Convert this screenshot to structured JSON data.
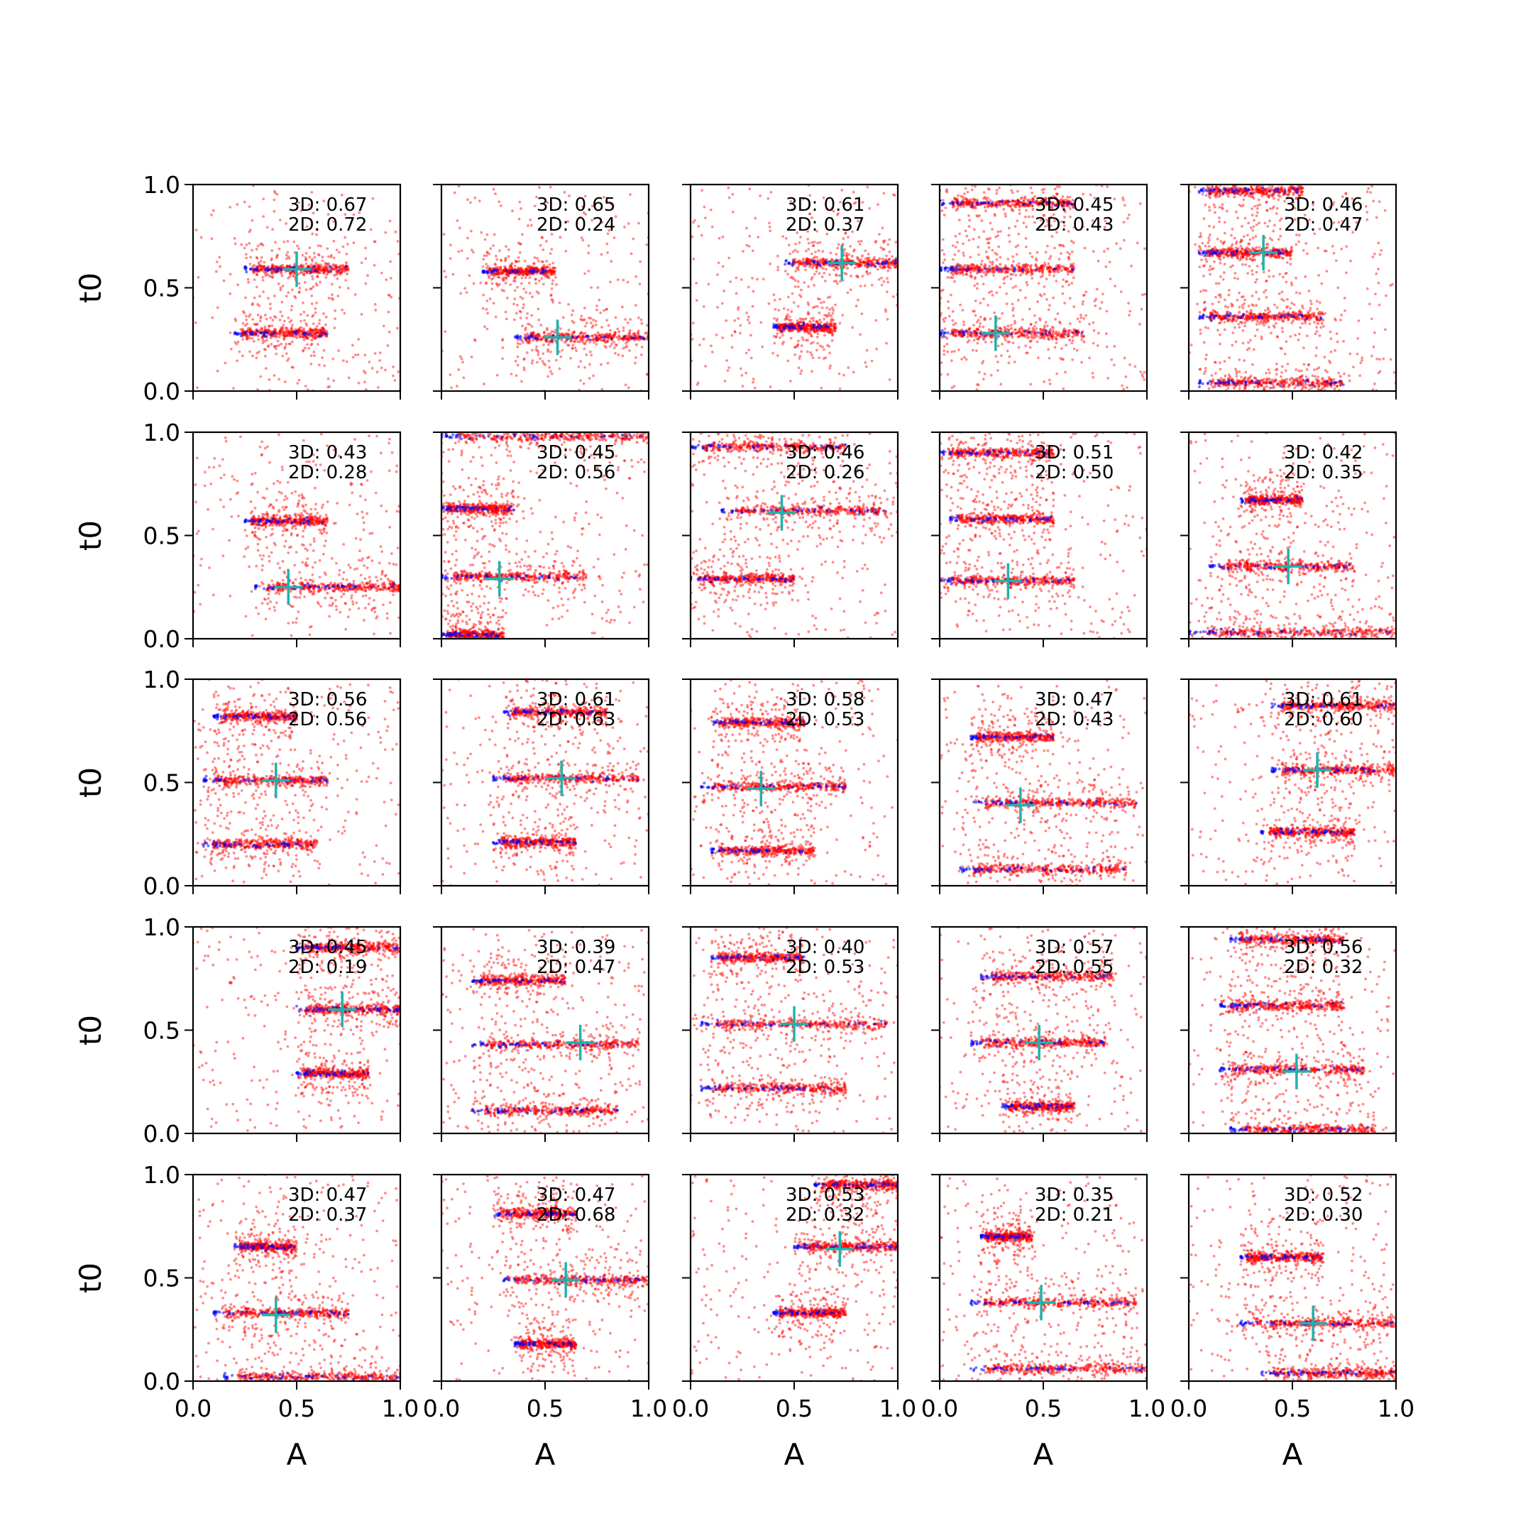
{
  "figure": {
    "xlabel": "A",
    "ylabel": "t0",
    "xlim": [
      0,
      1
    ],
    "ylim": [
      0,
      1
    ],
    "xticks": [
      "0.0",
      "0.5",
      "1.0"
    ],
    "yticks": [
      "0.0",
      "0.5",
      "1.0"
    ],
    "rows": 5,
    "cols": 5,
    "colors": {
      "red_points": "#ff0000",
      "blue_points": "#0000ff",
      "marker": "#20b2aa"
    },
    "grid": false
  },
  "chart_data": [
    {
      "type": "scatter",
      "annotation_3d": "3D: 0.67",
      "annotation_2d": "2D: 0.72",
      "marker": [
        0.5,
        0.59
      ],
      "clusters": [
        {
          "a": [
            0.25,
            0.75
          ],
          "t": 0.59
        },
        {
          "a": [
            0.2,
            0.65
          ],
          "t": 0.28
        }
      ]
    },
    {
      "type": "scatter",
      "annotation_3d": "3D: 0.65",
      "annotation_2d": "2D: 0.24",
      "marker": [
        0.56,
        0.26
      ],
      "clusters": [
        {
          "a": [
            0.2,
            0.55
          ],
          "t": 0.58
        },
        {
          "a": [
            0.35,
            1.0
          ],
          "t": 0.26
        }
      ]
    },
    {
      "type": "scatter",
      "annotation_3d": "3D: 0.61",
      "annotation_2d": "2D: 0.37",
      "marker": [
        0.73,
        0.62
      ],
      "clusters": [
        {
          "a": [
            0.45,
            1.0
          ],
          "t": 0.62
        },
        {
          "a": [
            0.4,
            0.7
          ],
          "t": 0.31
        }
      ]
    },
    {
      "type": "scatter",
      "annotation_3d": "3D: 0.45",
      "annotation_2d": "2D: 0.43",
      "marker": [
        0.27,
        0.28
      ],
      "clusters": [
        {
          "a": [
            0.0,
            0.65
          ],
          "t": 0.91
        },
        {
          "a": [
            0.0,
            0.65
          ],
          "t": 0.59
        },
        {
          "a": [
            0.0,
            0.7
          ],
          "t": 0.28
        }
      ]
    },
    {
      "type": "scatter",
      "annotation_3d": "3D: 0.46",
      "annotation_2d": "2D: 0.47",
      "marker": [
        0.36,
        0.67
      ],
      "clusters": [
        {
          "a": [
            0.05,
            0.55
          ],
          "t": 0.97
        },
        {
          "a": [
            0.05,
            0.5
          ],
          "t": 0.67
        },
        {
          "a": [
            0.05,
            0.65
          ],
          "t": 0.36
        },
        {
          "a": [
            0.05,
            0.75
          ],
          "t": 0.04
        }
      ]
    },
    {
      "type": "scatter",
      "annotation_3d": "3D: 0.43",
      "annotation_2d": "2D: 0.28",
      "marker": [
        0.46,
        0.25
      ],
      "clusters": [
        {
          "a": [
            0.25,
            0.65
          ],
          "t": 0.57
        },
        {
          "a": [
            0.3,
            1.0
          ],
          "t": 0.25
        }
      ]
    },
    {
      "type": "scatter",
      "annotation_3d": "3D: 0.45",
      "annotation_2d": "2D: 0.56",
      "marker": [
        0.28,
        0.29
      ],
      "clusters": [
        {
          "a": [
            0.0,
            1.0
          ],
          "t": 0.98
        },
        {
          "a": [
            0.0,
            0.35
          ],
          "t": 0.63
        },
        {
          "a": [
            0.0,
            0.7
          ],
          "t": 0.3
        },
        {
          "a": [
            0.0,
            0.3
          ],
          "t": 0.02
        }
      ]
    },
    {
      "type": "scatter",
      "annotation_3d": "3D: 0.46",
      "annotation_2d": "2D: 0.26",
      "marker": [
        0.44,
        0.61
      ],
      "clusters": [
        {
          "a": [
            0.0,
            0.75
          ],
          "t": 0.93
        },
        {
          "a": [
            0.15,
            0.95
          ],
          "t": 0.62
        },
        {
          "a": [
            0.0,
            0.5
          ],
          "t": 0.29
        }
      ]
    },
    {
      "type": "scatter",
      "annotation_3d": "3D: 0.51",
      "annotation_2d": "2D: 0.50",
      "marker": [
        0.33,
        0.28
      ],
      "clusters": [
        {
          "a": [
            0.0,
            0.55
          ],
          "t": 0.9
        },
        {
          "a": [
            0.05,
            0.55
          ],
          "t": 0.58
        },
        {
          "a": [
            0.0,
            0.65
          ],
          "t": 0.28
        }
      ]
    },
    {
      "type": "scatter",
      "annotation_3d": "3D: 0.42",
      "annotation_2d": "2D: 0.35",
      "marker": [
        0.48,
        0.35
      ],
      "clusters": [
        {
          "a": [
            0.25,
            0.55
          ],
          "t": 0.67
        },
        {
          "a": [
            0.1,
            0.8
          ],
          "t": 0.35
        },
        {
          "a": [
            0.0,
            1.0
          ],
          "t": 0.03
        }
      ]
    },
    {
      "type": "scatter",
      "annotation_3d": "3D: 0.56",
      "annotation_2d": "2D: 0.56",
      "marker": [
        0.4,
        0.51
      ],
      "clusters": [
        {
          "a": [
            0.1,
            0.5
          ],
          "t": 0.82
        },
        {
          "a": [
            0.05,
            0.65
          ],
          "t": 0.51
        },
        {
          "a": [
            0.05,
            0.6
          ],
          "t": 0.2
        }
      ]
    },
    {
      "type": "scatter",
      "annotation_3d": "3D: 0.61",
      "annotation_2d": "2D: 0.63",
      "marker": [
        0.58,
        0.52
      ],
      "clusters": [
        {
          "a": [
            0.3,
            0.8
          ],
          "t": 0.84
        },
        {
          "a": [
            0.25,
            0.95
          ],
          "t": 0.52
        },
        {
          "a": [
            0.25,
            0.65
          ],
          "t": 0.21
        }
      ]
    },
    {
      "type": "scatter",
      "annotation_3d": "3D: 0.58",
      "annotation_2d": "2D: 0.53",
      "marker": [
        0.34,
        0.47
      ],
      "clusters": [
        {
          "a": [
            0.1,
            0.55
          ],
          "t": 0.79
        },
        {
          "a": [
            0.05,
            0.75
          ],
          "t": 0.48
        },
        {
          "a": [
            0.1,
            0.6
          ],
          "t": 0.17
        }
      ]
    },
    {
      "type": "scatter",
      "annotation_3d": "3D: 0.47",
      "annotation_2d": "2D: 0.43",
      "marker": [
        0.39,
        0.39
      ],
      "clusters": [
        {
          "a": [
            0.15,
            0.55
          ],
          "t": 0.72
        },
        {
          "a": [
            0.15,
            0.95
          ],
          "t": 0.4
        },
        {
          "a": [
            0.1,
            0.9
          ],
          "t": 0.08
        }
      ]
    },
    {
      "type": "scatter",
      "annotation_3d": "3D: 0.61",
      "annotation_2d": "2D: 0.60",
      "marker": [
        0.62,
        0.56
      ],
      "clusters": [
        {
          "a": [
            0.4,
            1.0
          ],
          "t": 0.87
        },
        {
          "a": [
            0.4,
            1.0
          ],
          "t": 0.56
        },
        {
          "a": [
            0.35,
            0.8
          ],
          "t": 0.26
        }
      ]
    },
    {
      "type": "scatter",
      "annotation_3d": "3D: 0.45",
      "annotation_2d": "2D: 0.19",
      "marker": [
        0.72,
        0.6
      ],
      "clusters": [
        {
          "a": [
            0.5,
            1.0
          ],
          "t": 0.9
        },
        {
          "a": [
            0.5,
            1.0
          ],
          "t": 0.6
        },
        {
          "a": [
            0.5,
            0.85
          ],
          "t": 0.29
        }
      ]
    },
    {
      "type": "scatter",
      "annotation_3d": "3D: 0.39",
      "annotation_2d": "2D: 0.47",
      "marker": [
        0.67,
        0.44
      ],
      "clusters": [
        {
          "a": [
            0.15,
            0.6
          ],
          "t": 0.74
        },
        {
          "a": [
            0.15,
            0.95
          ],
          "t": 0.43
        },
        {
          "a": [
            0.15,
            0.85
          ],
          "t": 0.11
        }
      ]
    },
    {
      "type": "scatter",
      "annotation_3d": "3D: 0.40",
      "annotation_2d": "2D: 0.53",
      "marker": [
        0.5,
        0.53
      ],
      "clusters": [
        {
          "a": [
            0.1,
            0.55
          ],
          "t": 0.85
        },
        {
          "a": [
            0.05,
            0.95
          ],
          "t": 0.53
        },
        {
          "a": [
            0.05,
            0.75
          ],
          "t": 0.22
        }
      ]
    },
    {
      "type": "scatter",
      "annotation_3d": "3D: 0.57",
      "annotation_2d": "2D: 0.55",
      "marker": [
        0.48,
        0.44
      ],
      "clusters": [
        {
          "a": [
            0.2,
            0.85
          ],
          "t": 0.76
        },
        {
          "a": [
            0.15,
            0.8
          ],
          "t": 0.44
        },
        {
          "a": [
            0.3,
            0.65
          ],
          "t": 0.13
        }
      ]
    },
    {
      "type": "scatter",
      "annotation_3d": "3D: 0.56",
      "annotation_2d": "2D: 0.32",
      "marker": [
        0.52,
        0.3
      ],
      "clusters": [
        {
          "a": [
            0.2,
            0.75
          ],
          "t": 0.94
        },
        {
          "a": [
            0.15,
            0.75
          ],
          "t": 0.62
        },
        {
          "a": [
            0.15,
            0.85
          ],
          "t": 0.31
        },
        {
          "a": [
            0.2,
            0.9
          ],
          "t": 0.02
        }
      ]
    },
    {
      "type": "scatter",
      "annotation_3d": "3D: 0.47",
      "annotation_2d": "2D: 0.37",
      "marker": [
        0.4,
        0.32
      ],
      "clusters": [
        {
          "a": [
            0.2,
            0.5
          ],
          "t": 0.65
        },
        {
          "a": [
            0.1,
            0.75
          ],
          "t": 0.33
        },
        {
          "a": [
            0.15,
            1.0
          ],
          "t": 0.02
        }
      ]
    },
    {
      "type": "scatter",
      "annotation_3d": "3D: 0.47",
      "annotation_2d": "2D: 0.68",
      "marker": [
        0.6,
        0.49
      ],
      "clusters": [
        {
          "a": [
            0.25,
            0.65
          ],
          "t": 0.81
        },
        {
          "a": [
            0.3,
            1.0
          ],
          "t": 0.49
        },
        {
          "a": [
            0.35,
            0.65
          ],
          "t": 0.18
        }
      ]
    },
    {
      "type": "scatter",
      "annotation_3d": "3D: 0.53",
      "annotation_2d": "2D: 0.32",
      "marker": [
        0.72,
        0.64
      ],
      "clusters": [
        {
          "a": [
            0.6,
            1.0
          ],
          "t": 0.95
        },
        {
          "a": [
            0.5,
            1.0
          ],
          "t": 0.65
        },
        {
          "a": [
            0.4,
            0.75
          ],
          "t": 0.33
        }
      ]
    },
    {
      "type": "scatter",
      "annotation_3d": "3D: 0.35",
      "annotation_2d": "2D: 0.21",
      "marker": [
        0.49,
        0.38
      ],
      "clusters": [
        {
          "a": [
            0.2,
            0.45
          ],
          "t": 0.7
        },
        {
          "a": [
            0.15,
            0.95
          ],
          "t": 0.38
        },
        {
          "a": [
            0.15,
            1.0
          ],
          "t": 0.06
        }
      ]
    },
    {
      "type": "scatter",
      "annotation_3d": "3D: 0.52",
      "annotation_2d": "2D: 0.30",
      "marker": [
        0.6,
        0.28
      ],
      "clusters": [
        {
          "a": [
            0.25,
            0.65
          ],
          "t": 0.6
        },
        {
          "a": [
            0.25,
            1.0
          ],
          "t": 0.28
        },
        {
          "a": [
            0.35,
            1.0
          ],
          "t": 0.04
        }
      ]
    }
  ]
}
